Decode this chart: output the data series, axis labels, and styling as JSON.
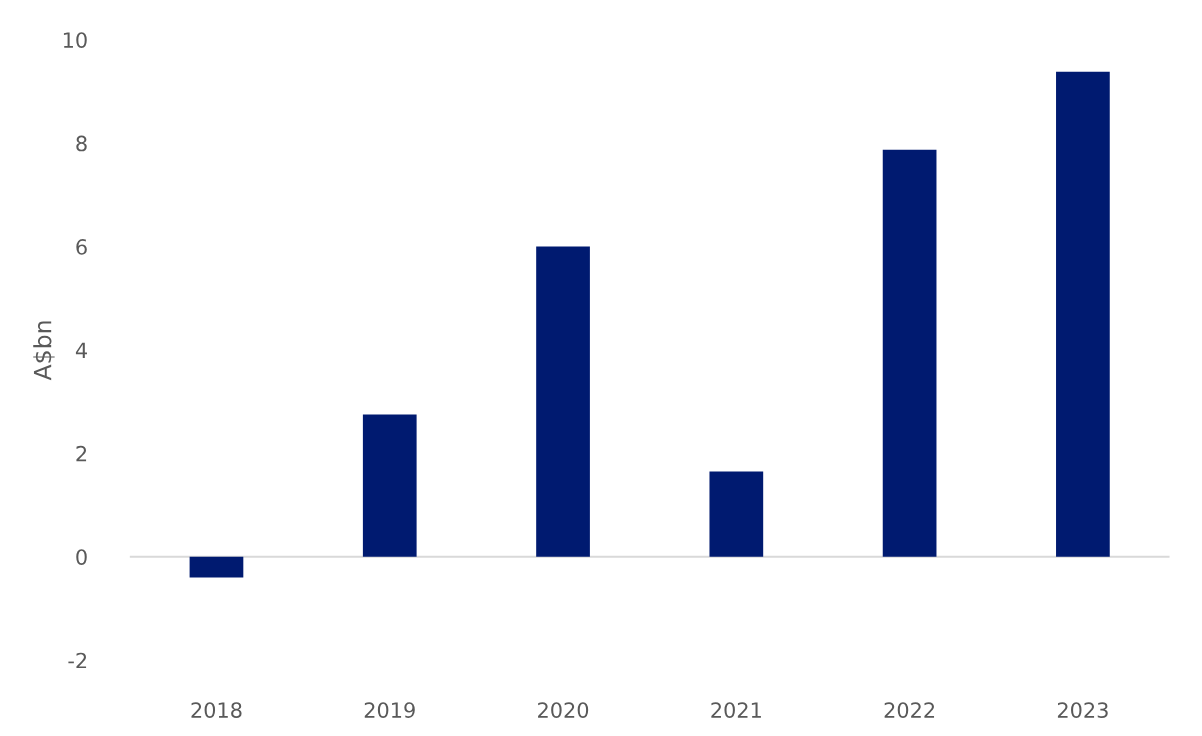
{
  "chart_data": {
    "type": "bar",
    "categories": [
      "2018",
      "2019",
      "2020",
      "2021",
      "2022",
      "2023"
    ],
    "values": [
      -0.4,
      2.75,
      6.0,
      1.65,
      7.87,
      9.38
    ],
    "color": "#001a70",
    "ylabel": "A$bn",
    "ylim": [
      -2,
      10
    ],
    "yticks": [
      -2,
      0,
      2,
      4,
      6,
      8,
      10
    ],
    "ref_lines": [
      {
        "axis": "y",
        "value": 0,
        "color": "#d9d9d9"
      }
    ]
  }
}
